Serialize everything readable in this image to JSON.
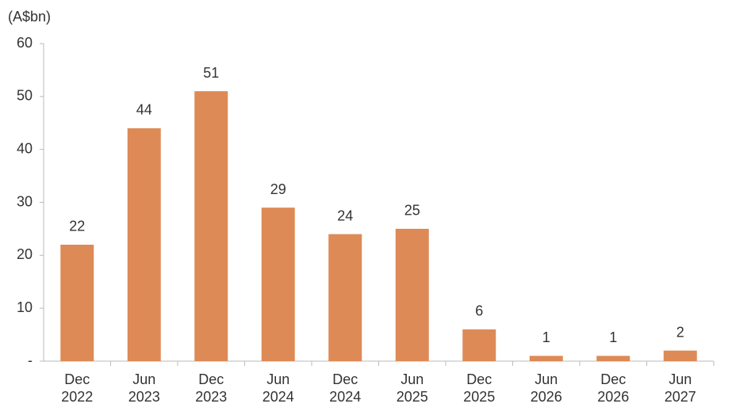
{
  "chart_data": {
    "type": "bar",
    "y_axis_label": "(A$bn)",
    "categories": [
      "Dec 2022",
      "Jun 2023",
      "Dec 2023",
      "Jun 2024",
      "Dec 2024",
      "Jun 2025",
      "Dec 2025",
      "Jun 2026",
      "Dec 2026",
      "Jun 2027"
    ],
    "values": [
      22,
      44,
      51,
      29,
      24,
      25,
      6,
      1,
      1,
      2
    ],
    "color": "#dd8a56",
    "ylim": [
      0,
      60
    ],
    "yticks": [
      {
        "value": 0,
        "label": "-"
      },
      10,
      20,
      30,
      40,
      50,
      60
    ],
    "grid": false
  }
}
